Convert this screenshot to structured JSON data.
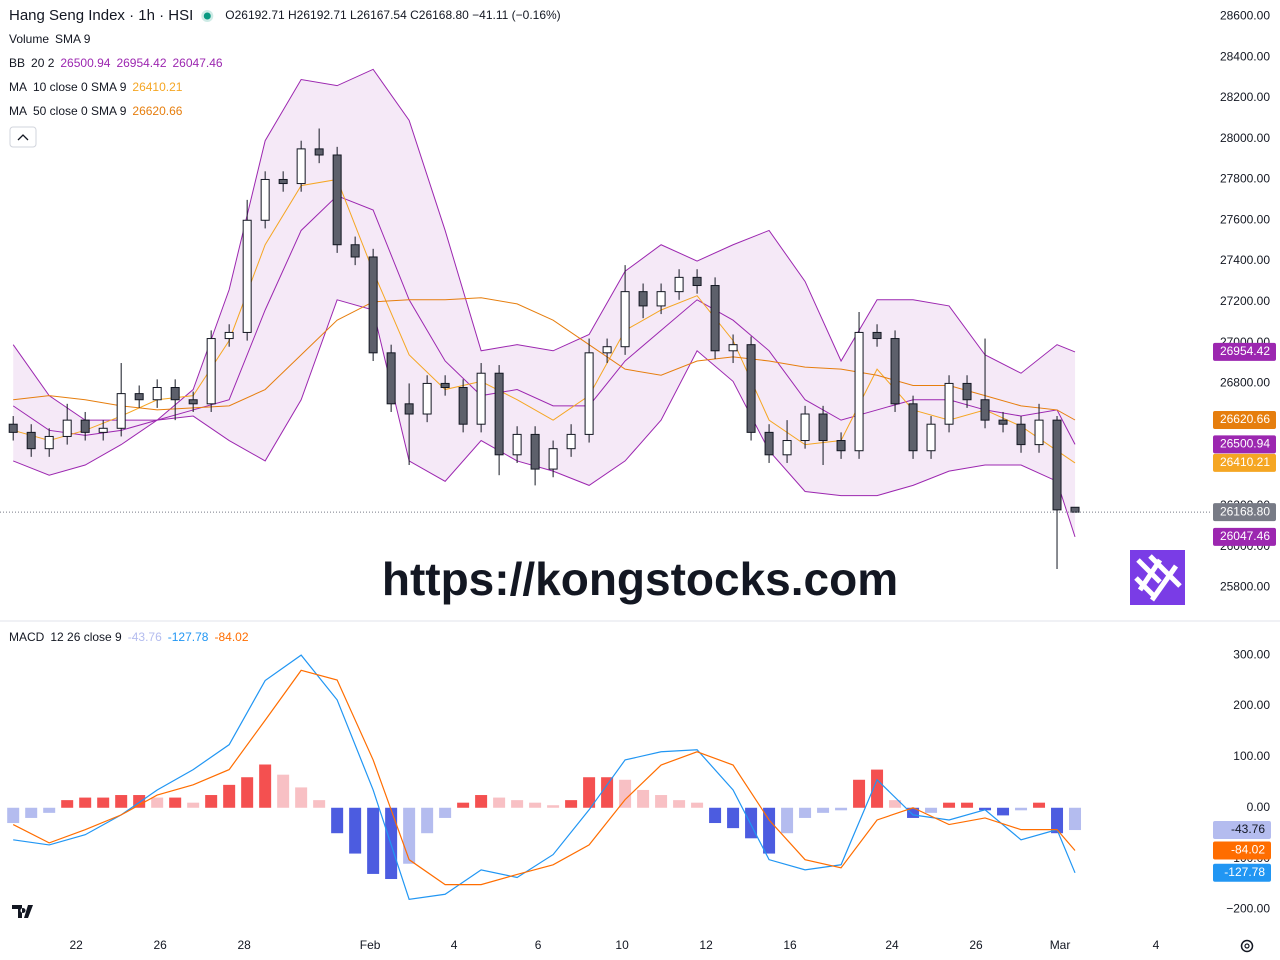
{
  "header": {
    "title": "Hang Seng Index · 1h · HSI",
    "ohlc": "O26192.71 H26192.71 L26167.54 C26168.80 −41.11 (−0.16%)",
    "volume": {
      "name": "Volume",
      "params": "SMA 9"
    }
  },
  "watermark": "https://kongstocks.com",
  "chart_data": [
    {
      "type": "candlestick",
      "x": [
        2,
        5,
        8,
        11,
        14,
        17,
        20,
        23,
        26,
        29,
        32,
        35,
        38,
        41,
        44,
        47,
        50,
        53,
        56,
        59,
        62,
        65,
        68,
        71,
        74,
        77,
        80,
        83,
        86,
        89,
        92,
        95,
        98,
        101,
        104,
        107,
        110,
        113,
        116,
        119,
        122,
        125,
        128,
        131,
        134,
        137,
        140,
        143,
        146,
        149,
        152,
        155,
        158,
        161,
        164,
        167,
        170,
        173,
        176,
        179
      ],
      "open": [
        26600,
        26560,
        26480,
        26540,
        26620,
        26560,
        26580,
        26750,
        26720,
        26780,
        26720,
        26700,
        27020,
        27050,
        27600,
        27800,
        27780,
        27950,
        27920,
        27480,
        27420,
        26950,
        26700,
        26650,
        26800,
        26780,
        26600,
        26850,
        26450,
        26550,
        26380,
        26480,
        26550,
        26950,
        26980,
        27250,
        27180,
        27250,
        27320,
        27280,
        26960,
        26990,
        26560,
        26450,
        26520,
        26650,
        26520,
        26470,
        27050,
        27020,
        26700,
        26470,
        26600,
        26800,
        26720,
        26620,
        26600,
        26500,
        26620,
        26192.71
      ],
      "high": [
        26640,
        26600,
        26580,
        26700,
        26660,
        26620,
        26900,
        26790,
        26820,
        26820,
        26760,
        27060,
        27090,
        27700,
        27840,
        27840,
        27990,
        28050,
        27960,
        27520,
        27460,
        26990,
        26800,
        26840,
        26840,
        26820,
        26900,
        26890,
        26590,
        26590,
        26520,
        26600,
        27020,
        27020,
        27380,
        27290,
        27290,
        27360,
        27360,
        27320,
        27040,
        27030,
        26600,
        26620,
        26690,
        26690,
        26560,
        27150,
        27090,
        27060,
        26740,
        26640,
        26840,
        26840,
        27020,
        26660,
        26640,
        26700,
        26640,
        26192.71
      ],
      "low": [
        26520,
        26440,
        26440,
        26500,
        26520,
        26520,
        26540,
        26680,
        26680,
        26620,
        26660,
        26660,
        26980,
        27010,
        27560,
        27740,
        27740,
        27880,
        27440,
        27380,
        26910,
        26660,
        26400,
        26610,
        26740,
        26560,
        26560,
        26350,
        26410,
        26300,
        26340,
        26440,
        26510,
        26900,
        26940,
        27120,
        27140,
        27210,
        27240,
        26920,
        26900,
        26520,
        26410,
        26410,
        26480,
        26400,
        26430,
        26430,
        26980,
        26660,
        26430,
        26430,
        26560,
        26680,
        26580,
        26560,
        26460,
        26460,
        25890,
        26167.54
      ],
      "close": [
        26560,
        26480,
        26540,
        26620,
        26560,
        26580,
        26750,
        26720,
        26780,
        26720,
        26700,
        27020,
        27050,
        27600,
        27800,
        27780,
        27950,
        27920,
        27480,
        27420,
        26950,
        26700,
        26650,
        26800,
        26780,
        26600,
        26850,
        26450,
        26550,
        26380,
        26480,
        26550,
        26950,
        26980,
        27250,
        27180,
        27250,
        27320,
        27280,
        26960,
        26990,
        26560,
        26450,
        26520,
        26650,
        26520,
        26470,
        27050,
        27020,
        26700,
        26470,
        26600,
        26800,
        26720,
        26620,
        26600,
        26500,
        26620,
        26180,
        26168.8
      ],
      "last_label": "26168.80",
      "up_color": "#ffffff",
      "down_color": "#5d606b",
      "border_color": "#131722",
      "last_color": "#787b86",
      "xlim": [
        -0.2,
        201.5
      ],
      "xticks": [
        {
          "value": 12.5,
          "label": "22"
        },
        {
          "value": 26.5,
          "label": "26"
        },
        {
          "value": 40.5,
          "label": "28"
        },
        {
          "value": 61.5,
          "label": "Feb"
        },
        {
          "value": 75.5,
          "label": "4"
        },
        {
          "value": 89.5,
          "label": "6"
        },
        {
          "value": 103.5,
          "label": "10"
        },
        {
          "value": 117.5,
          "label": "12"
        },
        {
          "value": 131.5,
          "label": "16"
        },
        {
          "value": 148.5,
          "label": "24"
        },
        {
          "value": 162.5,
          "label": "26"
        },
        {
          "value": 176.5,
          "label": "Mar"
        },
        {
          "value": 192.5,
          "label": "4"
        }
      ],
      "ylim": [
        25640,
        28680
      ],
      "yticks": [
        {
          "value": 25800,
          "label": "25800.00"
        },
        {
          "value": 26000,
          "label": "26000.00"
        },
        {
          "value": 26200,
          "label": "26200.00"
        },
        {
          "value": 26400,
          "label": "26400.00"
        },
        {
          "value": 26600,
          "label": "26600.00"
        },
        {
          "value": 26800,
          "label": "26800.00"
        },
        {
          "value": 27000,
          "label": "27000.00"
        },
        {
          "value": 27200,
          "label": "27200.00"
        },
        {
          "value": 27400,
          "label": "27400.00"
        },
        {
          "value": 27600,
          "label": "27600.00"
        },
        {
          "value": 27800,
          "label": "27800.00"
        },
        {
          "value": 28000,
          "label": "28000.00"
        },
        {
          "value": 28200,
          "label": "28200.00"
        },
        {
          "value": 28400,
          "label": "28400.00"
        },
        {
          "value": 28600,
          "label": "28600.00"
        }
      ],
      "grid": false,
      "line_x": [
        2,
        8,
        14,
        20,
        26,
        32,
        38,
        44,
        50,
        56,
        62,
        68,
        74,
        80,
        86,
        92,
        98,
        104,
        110,
        116,
        122,
        128,
        134,
        140,
        146,
        152,
        158,
        164,
        170,
        176,
        179
      ],
      "indicators": [
        {
          "name": "BB",
          "params": "20 2",
          "color": "#9c27b0",
          "fill": "rgba(156,39,176,0.10)",
          "lines": [
            {
              "values": [
                26690,
                26570,
                26545,
                26570,
                26620,
                26670,
                26720,
                27160,
                27550,
                27720,
                27650,
                27210,
                26910,
                26740,
                26770,
                26690,
                26690,
                26910,
                27060,
                27210,
                27110,
                26960,
                26720,
                26620,
                26670,
                26720,
                26720,
                26670,
                26640,
                26670,
                26500.94
              ]
            },
            {
              "values": [
                26990,
                26740,
                26620,
                26620,
                26620,
                26770,
                27260,
                27990,
                28290,
                28260,
                28340,
                28090,
                27550,
                26960,
                26990,
                26960,
                27040,
                27350,
                27480,
                27400,
                27480,
                27550,
                27300,
                26910,
                27210,
                27210,
                27180,
                26940,
                26850,
                26990,
                26954.42
              ]
            },
            {
              "values": [
                26420,
                26350,
                26400,
                26500,
                26620,
                26640,
                26520,
                26420,
                26720,
                27210,
                27160,
                26420,
                26320,
                26520,
                26420,
                26370,
                26300,
                26420,
                26620,
                26960,
                26810,
                26470,
                26270,
                26250,
                26250,
                26300,
                26370,
                26400,
                26400,
                26320,
                26047.46
              ]
            }
          ]
        },
        {
          "name": "MA",
          "params": "10 close 0 SMA 9",
          "color": "#f5a623",
          "lines": [
            {
              "values": [
                26570,
                26520,
                26570,
                26640,
                26720,
                26740,
                27010,
                27480,
                27770,
                27800,
                27350,
                26940,
                26770,
                26810,
                26720,
                26620,
                26740,
                27060,
                27160,
                27230,
                27010,
                26620,
                26500,
                26520,
                26870,
                26670,
                26620,
                26670,
                26590,
                26470,
                26410.21
              ]
            }
          ]
        },
        {
          "name": "MA",
          "params": "50 close 0 SMA 9",
          "color": "#e67e0e",
          "lines": [
            {
              "values": [
                26720,
                26740,
                26720,
                26690,
                26670,
                26680,
                26690,
                26770,
                26940,
                27110,
                27200,
                27210,
                27210,
                27220,
                27190,
                27110,
                26990,
                26870,
                26840,
                26910,
                26930,
                26910,
                26880,
                26870,
                26840,
                26790,
                26790,
                26740,
                26690,
                26670,
                26620.66
              ]
            }
          ]
        }
      ]
    },
    {
      "type": "macd",
      "name": "MACD",
      "params": "12 26 close 9",
      "x": [
        2,
        5,
        8,
        11,
        14,
        17,
        20,
        23,
        26,
        29,
        32,
        35,
        38,
        41,
        44,
        47,
        50,
        53,
        56,
        59,
        62,
        65,
        68,
        71,
        74,
        77,
        80,
        83,
        86,
        89,
        92,
        95,
        98,
        101,
        104,
        107,
        110,
        113,
        116,
        119,
        122,
        125,
        128,
        131,
        134,
        137,
        140,
        143,
        146,
        149,
        152,
        155,
        158,
        161,
        164,
        167,
        170,
        173,
        176,
        179
      ],
      "histogram": {
        "colors": [
          "#f45050",
          "#f8c0c4",
          "#4c5ce0",
          "#b4bcef"
        ],
        "values": [
          -30,
          -20,
          -10,
          15,
          20,
          20,
          25,
          25,
          20,
          20,
          10,
          25,
          45,
          60,
          85,
          65,
          40,
          15,
          -50,
          -90,
          -130,
          -140,
          -110,
          -50,
          -20,
          10,
          25,
          20,
          15,
          10,
          5,
          15,
          60,
          60,
          55,
          35,
          25,
          15,
          10,
          -30,
          -40,
          -60,
          -90,
          -50,
          -20,
          -10,
          -5,
          55,
          75,
          15,
          -20,
          -10,
          10,
          10,
          -5,
          -15,
          -5,
          10,
          -50,
          -43.76
        ]
      },
      "line_x": [
        2,
        8,
        14,
        20,
        26,
        32,
        38,
        44,
        50,
        56,
        62,
        68,
        74,
        80,
        86,
        92,
        98,
        104,
        110,
        116,
        122,
        128,
        134,
        140,
        146,
        152,
        158,
        164,
        170,
        176,
        179
      ],
      "lines": [
        {
          "color": "#2196f3",
          "values": [
            -63,
            -73,
            -53,
            -14,
            35,
            75,
            124,
            250,
            300,
            212,
            35,
            -180,
            -170,
            -122,
            -137,
            -92,
            -4,
            94,
            110,
            114,
            35,
            -102,
            -122,
            -112,
            55,
            -14,
            -24,
            -4,
            -63,
            -43,
            -127.78
          ]
        },
        {
          "color": "#ff6d00",
          "values": [
            -33,
            -69,
            -43,
            -14,
            25,
            45,
            75,
            172,
            270,
            251,
            94,
            -102,
            -151,
            -151,
            -131,
            -112,
            -73,
            16,
            84,
            110,
            84,
            -24,
            -102,
            -118,
            -24,
            0,
            -33,
            -20,
            -43,
            -43,
            -84.02
          ]
        }
      ],
      "xlim": [
        -0.2,
        201.5
      ],
      "ylim": [
        -250,
        365
      ],
      "yticks": [
        {
          "value": -200,
          "label": "−200.00"
        },
        {
          "value": -100,
          "label": "−100.00"
        },
        {
          "value": 0,
          "label": "0.00"
        },
        {
          "value": 100,
          "label": "100.00"
        },
        {
          "value": 200,
          "label": "200.00"
        },
        {
          "value": 300,
          "label": "300.00"
        }
      ],
      "grid": false
    }
  ]
}
